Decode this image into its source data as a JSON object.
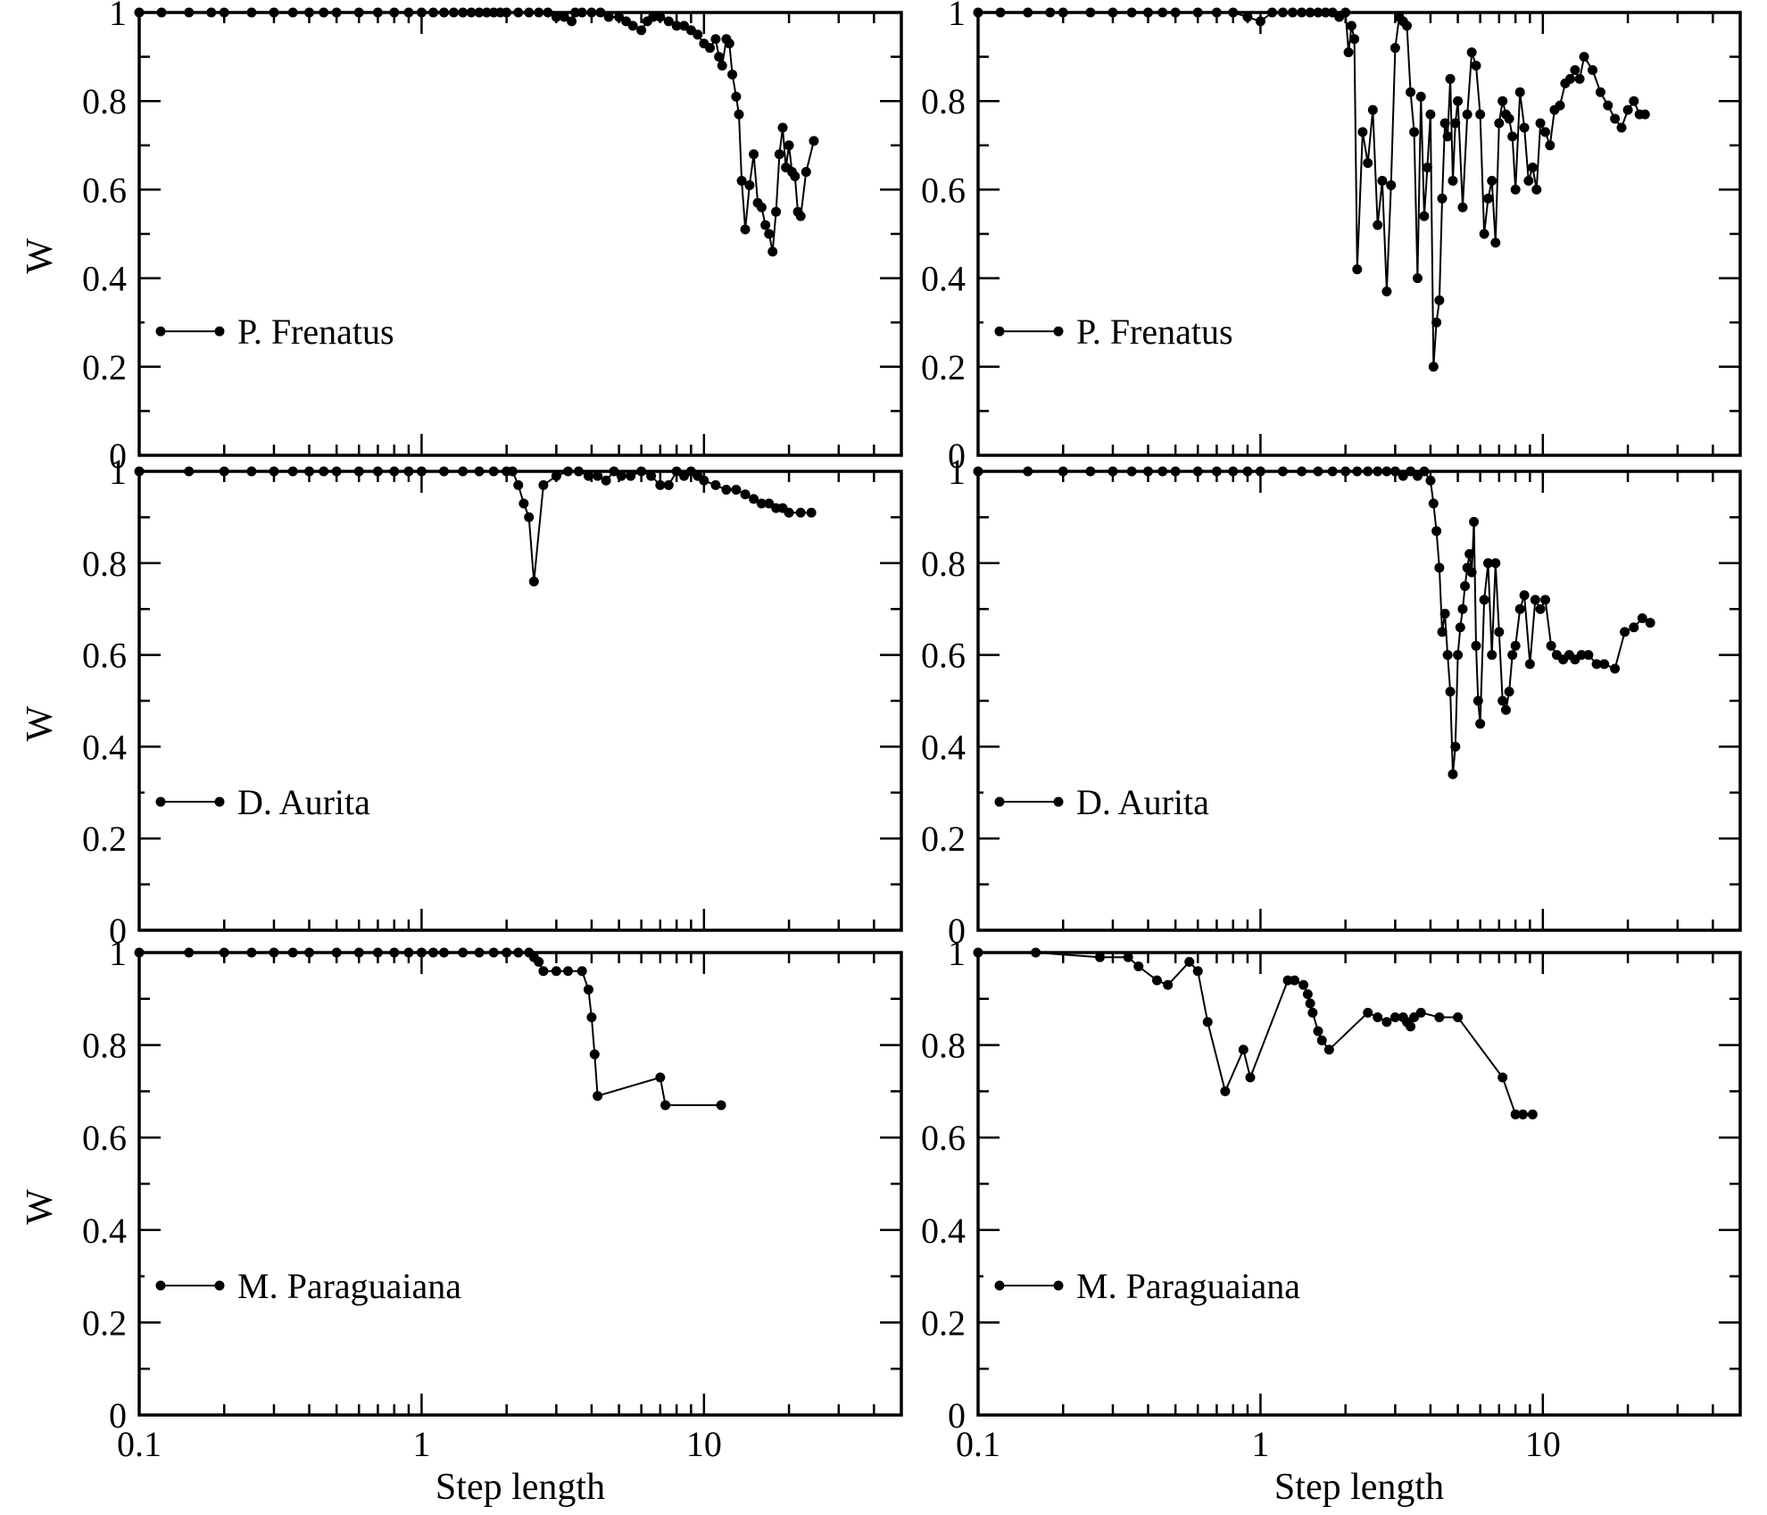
{
  "chart_data": [
    {
      "type": "line",
      "panel": "top-left",
      "xscale": "log",
      "xlim": [
        0.1,
        50
      ],
      "ylim": [
        0,
        1
      ],
      "xlabel": "",
      "ylabel": "W",
      "xticks": [
        "0.1",
        "1",
        "10"
      ],
      "yticks": [
        "0",
        "0.2",
        "0.4",
        "0.6",
        "0.8",
        "1"
      ],
      "legend": "bottom-left",
      "series": [
        {
          "name": "P. Frenatus",
          "x": [
            0.1,
            0.12,
            0.15,
            0.18,
            0.2,
            0.25,
            0.3,
            0.35,
            0.4,
            0.45,
            0.5,
            0.6,
            0.7,
            0.8,
            0.9,
            1.0,
            1.1,
            1.2,
            1.3,
            1.4,
            1.5,
            1.6,
            1.7,
            1.8,
            1.9,
            2.0,
            2.2,
            2.4,
            2.6,
            2.8,
            3.0,
            3.2,
            3.4,
            3.5,
            3.7,
            4.0,
            4.3,
            4.6,
            5.0,
            5.3,
            5.6,
            6.0,
            6.3,
            6.6,
            7.0,
            7.5,
            8.0,
            8.5,
            9.0,
            9.5,
            10.0,
            10.5,
            11.0,
            11.3,
            11.6,
            12.0,
            12.3,
            12.6,
            13.0,
            13.3,
            13.6,
            14.0,
            14.5,
            15.0,
            15.5,
            16.0,
            16.5,
            17.0,
            17.5,
            18.0,
            18.5,
            19.0,
            19.5,
            20.0,
            20.5,
            21.0,
            21.5,
            22.0,
            23.0,
            24.5
          ],
          "y": [
            1.0,
            1.0,
            1.0,
            1.0,
            1.0,
            1.0,
            1.0,
            1.0,
            1.0,
            1.0,
            1.0,
            1.0,
            1.0,
            1.0,
            1.0,
            1.0,
            1.0,
            1.0,
            1.0,
            1.0,
            1.0,
            1.0,
            1.0,
            1.0,
            1.0,
            1.0,
            1.0,
            1.0,
            1.0,
            1.0,
            0.99,
            0.99,
            0.98,
            1.0,
            1.0,
            1.0,
            1.0,
            0.99,
            0.99,
            0.98,
            0.97,
            0.96,
            0.98,
            0.99,
            0.99,
            0.98,
            0.97,
            0.97,
            0.96,
            0.95,
            0.93,
            0.92,
            0.94,
            0.9,
            0.88,
            0.94,
            0.93,
            0.86,
            0.81,
            0.77,
            0.62,
            0.51,
            0.61,
            0.68,
            0.57,
            0.56,
            0.52,
            0.5,
            0.46,
            0.55,
            0.68,
            0.74,
            0.65,
            0.7,
            0.64,
            0.63,
            0.55,
            0.54,
            0.64,
            0.71
          ]
        }
      ]
    },
    {
      "type": "line",
      "panel": "top-right",
      "xscale": "log",
      "xlim": [
        0.1,
        50
      ],
      "ylim": [
        0,
        1
      ],
      "xlabel": "",
      "ylabel": "",
      "xticks": [
        "0.1",
        "1",
        "10"
      ],
      "yticks": [
        "0",
        "0.2",
        "0.4",
        "0.6",
        "0.8",
        "1"
      ],
      "legend": "bottom-left",
      "series": [
        {
          "name": "P. Frenatus",
          "x": [
            0.1,
            0.12,
            0.15,
            0.18,
            0.2,
            0.25,
            0.3,
            0.35,
            0.4,
            0.45,
            0.5,
            0.6,
            0.7,
            0.8,
            0.9,
            1.0,
            1.1,
            1.2,
            1.3,
            1.4,
            1.5,
            1.6,
            1.7,
            1.8,
            1.9,
            2.0,
            2.05,
            2.1,
            2.15,
            2.2,
            2.3,
            2.4,
            2.5,
            2.6,
            2.7,
            2.8,
            2.9,
            3.0,
            3.1,
            3.2,
            3.3,
            3.4,
            3.5,
            3.6,
            3.7,
            3.8,
            3.9,
            4.0,
            4.1,
            4.2,
            4.3,
            4.4,
            4.5,
            4.6,
            4.7,
            4.8,
            4.9,
            5.0,
            5.2,
            5.4,
            5.6,
            5.8,
            6.0,
            6.2,
            6.4,
            6.6,
            6.8,
            7.0,
            7.2,
            7.4,
            7.6,
            7.8,
            8.0,
            8.3,
            8.6,
            8.9,
            9.2,
            9.5,
            9.8,
            10.2,
            10.6,
            11.0,
            11.5,
            12.0,
            12.5,
            13.0,
            13.5,
            14.0,
            15.0,
            16.0,
            17.0,
            18.0,
            19.0,
            20.0,
            21.0,
            22.0,
            23.0
          ],
          "y": [
            1.0,
            1.0,
            1.0,
            1.0,
            1.0,
            1.0,
            1.0,
            1.0,
            1.0,
            1.0,
            1.0,
            1.0,
            1.0,
            1.0,
            0.99,
            0.98,
            1.0,
            1.0,
            1.0,
            1.0,
            1.0,
            1.0,
            1.0,
            1.0,
            0.99,
            1.0,
            0.91,
            0.97,
            0.94,
            0.42,
            0.73,
            0.66,
            0.78,
            0.52,
            0.62,
            0.37,
            0.61,
            0.92,
            0.99,
            0.98,
            0.97,
            0.82,
            0.73,
            0.4,
            0.81,
            0.54,
            0.65,
            0.77,
            0.2,
            0.3,
            0.35,
            0.58,
            0.75,
            0.72,
            0.85,
            0.62,
            0.75,
            0.8,
            0.56,
            0.77,
            0.91,
            0.88,
            0.77,
            0.5,
            0.58,
            0.62,
            0.48,
            0.75,
            0.8,
            0.77,
            0.76,
            0.72,
            0.6,
            0.82,
            0.74,
            0.62,
            0.65,
            0.6,
            0.75,
            0.73,
            0.7,
            0.78,
            0.79,
            0.84,
            0.85,
            0.87,
            0.85,
            0.9,
            0.87,
            0.82,
            0.79,
            0.76,
            0.74,
            0.78,
            0.8,
            0.77,
            0.77
          ]
        }
      ]
    },
    {
      "type": "line",
      "panel": "middle-left",
      "xscale": "log",
      "xlim": [
        0.1,
        50
      ],
      "ylim": [
        0,
        1
      ],
      "xlabel": "",
      "ylabel": "W",
      "xticks": [
        "0.1",
        "1",
        "10"
      ],
      "yticks": [
        "0",
        "0.2",
        "0.4",
        "0.6",
        "0.8",
        "1"
      ],
      "legend": "bottom-left",
      "series": [
        {
          "name": "D. Aurita",
          "x": [
            0.1,
            0.15,
            0.2,
            0.25,
            0.3,
            0.35,
            0.4,
            0.45,
            0.5,
            0.6,
            0.7,
            0.8,
            0.9,
            1.0,
            1.2,
            1.4,
            1.6,
            1.8,
            2.0,
            2.1,
            2.2,
            2.3,
            2.4,
            2.5,
            2.7,
            3.0,
            3.3,
            3.6,
            3.9,
            4.2,
            4.5,
            4.8,
            5.1,
            5.5,
            6.0,
            6.5,
            7.0,
            7.5,
            8.0,
            8.5,
            9.0,
            9.5,
            10.0,
            11.0,
            12.0,
            13.0,
            14.0,
            15.0,
            16.0,
            17.0,
            18.0,
            19.0,
            20.0,
            22.0,
            24.0
          ],
          "y": [
            1.0,
            1.0,
            1.0,
            1.0,
            1.0,
            1.0,
            1.0,
            1.0,
            1.0,
            1.0,
            1.0,
            1.0,
            1.0,
            1.0,
            1.0,
            1.0,
            1.0,
            1.0,
            1.0,
            1.0,
            0.97,
            0.93,
            0.9,
            0.76,
            0.97,
            0.99,
            1.0,
            1.0,
            0.99,
            0.99,
            0.98,
            1.0,
            0.99,
            0.99,
            1.0,
            0.99,
            0.97,
            0.97,
            1.0,
            0.99,
            1.0,
            0.99,
            0.98,
            0.97,
            0.96,
            0.96,
            0.95,
            0.94,
            0.93,
            0.93,
            0.92,
            0.92,
            0.91,
            0.91,
            0.91
          ]
        }
      ]
    },
    {
      "type": "line",
      "panel": "middle-right",
      "xscale": "log",
      "xlim": [
        0.1,
        50
      ],
      "ylim": [
        0,
        1
      ],
      "xlabel": "",
      "ylabel": "",
      "xticks": [
        "0.1",
        "1",
        "10"
      ],
      "yticks": [
        "0",
        "0.2",
        "0.4",
        "0.6",
        "0.8",
        "1"
      ],
      "legend": "bottom-left",
      "series": [
        {
          "name": "D. Aurita",
          "x": [
            0.1,
            0.15,
            0.2,
            0.25,
            0.3,
            0.35,
            0.4,
            0.45,
            0.5,
            0.6,
            0.7,
            0.8,
            0.9,
            1.0,
            1.2,
            1.4,
            1.6,
            1.8,
            2.0,
            2.2,
            2.4,
            2.6,
            2.8,
            3.0,
            3.2,
            3.4,
            3.6,
            3.8,
            4.0,
            4.1,
            4.2,
            4.3,
            4.4,
            4.5,
            4.6,
            4.7,
            4.8,
            4.9,
            5.0,
            5.1,
            5.2,
            5.3,
            5.4,
            5.5,
            5.6,
            5.7,
            5.8,
            5.9,
            6.0,
            6.2,
            6.4,
            6.6,
            6.8,
            7.0,
            7.2,
            7.4,
            7.6,
            7.8,
            8.0,
            8.3,
            8.6,
            9.0,
            9.4,
            9.8,
            10.2,
            10.7,
            11.2,
            11.8,
            12.4,
            13.0,
            13.7,
            14.5,
            15.5,
            16.5,
            18.0,
            19.5,
            21.0,
            22.5,
            24.0
          ],
          "y": [
            1.0,
            1.0,
            1.0,
            1.0,
            1.0,
            1.0,
            1.0,
            1.0,
            1.0,
            1.0,
            1.0,
            1.0,
            1.0,
            1.0,
            1.0,
            1.0,
            1.0,
            1.0,
            1.0,
            1.0,
            1.0,
            1.0,
            1.0,
            1.0,
            0.99,
            1.0,
            0.99,
            1.0,
            0.98,
            0.93,
            0.87,
            0.79,
            0.65,
            0.69,
            0.6,
            0.52,
            0.34,
            0.4,
            0.6,
            0.66,
            0.7,
            0.75,
            0.79,
            0.82,
            0.78,
            0.89,
            0.62,
            0.5,
            0.45,
            0.72,
            0.8,
            0.6,
            0.8,
            0.65,
            0.5,
            0.48,
            0.52,
            0.6,
            0.62,
            0.7,
            0.73,
            0.58,
            0.72,
            0.7,
            0.72,
            0.62,
            0.6,
            0.59,
            0.6,
            0.59,
            0.6,
            0.6,
            0.58,
            0.58,
            0.57,
            0.65,
            0.66,
            0.68,
            0.67
          ]
        }
      ]
    },
    {
      "type": "line",
      "panel": "bottom-left",
      "xscale": "log",
      "xlim": [
        0.1,
        50
      ],
      "ylim": [
        0,
        1
      ],
      "xlabel": "Step length",
      "ylabel": "W",
      "xticks": [
        "0.1",
        "1",
        "10"
      ],
      "yticks": [
        "0",
        "0.2",
        "0.4",
        "0.6",
        "0.8",
        "1"
      ],
      "legend": "bottom-left",
      "series": [
        {
          "name": "M. Paraguaiana",
          "x": [
            0.1,
            0.15,
            0.2,
            0.25,
            0.3,
            0.35,
            0.4,
            0.5,
            0.6,
            0.7,
            0.8,
            0.9,
            1.0,
            1.1,
            1.2,
            1.4,
            1.6,
            1.8,
            2.0,
            2.2,
            2.4,
            2.5,
            2.6,
            2.7,
            3.0,
            3.3,
            3.7,
            3.9,
            4.0,
            4.1,
            4.2,
            7.0,
            7.3,
            11.5
          ],
          "y": [
            1.0,
            1.0,
            1.0,
            1.0,
            1.0,
            1.0,
            1.0,
            1.0,
            1.0,
            1.0,
            1.0,
            1.0,
            1.0,
            1.0,
            1.0,
            1.0,
            1.0,
            1.0,
            1.0,
            1.0,
            1.0,
            0.99,
            0.98,
            0.96,
            0.96,
            0.96,
            0.96,
            0.92,
            0.86,
            0.78,
            0.69,
            0.73,
            0.67,
            0.67
          ]
        }
      ]
    },
    {
      "type": "line",
      "panel": "bottom-right",
      "xscale": "log",
      "xlim": [
        0.1,
        50
      ],
      "ylim": [
        0,
        1
      ],
      "xlabel": "Step length",
      "ylabel": "",
      "xticks": [
        "0.1",
        "1",
        "10"
      ],
      "yticks": [
        "0",
        "0.2",
        "0.4",
        "0.6",
        "0.8",
        "1"
      ],
      "legend": "bottom-left",
      "series": [
        {
          "name": "M. Paraguaiana",
          "x": [
            0.1,
            0.16,
            0.27,
            0.34,
            0.37,
            0.43,
            0.47,
            0.56,
            0.6,
            0.65,
            0.75,
            0.87,
            0.92,
            1.25,
            1.32,
            1.42,
            1.47,
            1.5,
            1.53,
            1.6,
            1.65,
            1.75,
            2.4,
            2.6,
            2.8,
            3.0,
            3.2,
            3.3,
            3.4,
            3.5,
            3.7,
            4.3,
            5.0,
            7.2,
            8.0,
            8.5,
            9.2
          ],
          "y": [
            1.0,
            1.0,
            0.99,
            0.99,
            0.97,
            0.94,
            0.93,
            0.98,
            0.96,
            0.85,
            0.7,
            0.79,
            0.73,
            0.94,
            0.94,
            0.93,
            0.91,
            0.89,
            0.87,
            0.83,
            0.81,
            0.79,
            0.87,
            0.86,
            0.85,
            0.86,
            0.86,
            0.85,
            0.84,
            0.86,
            0.87,
            0.86,
            0.86,
            0.73,
            0.65,
            0.65,
            0.65
          ]
        }
      ]
    }
  ]
}
